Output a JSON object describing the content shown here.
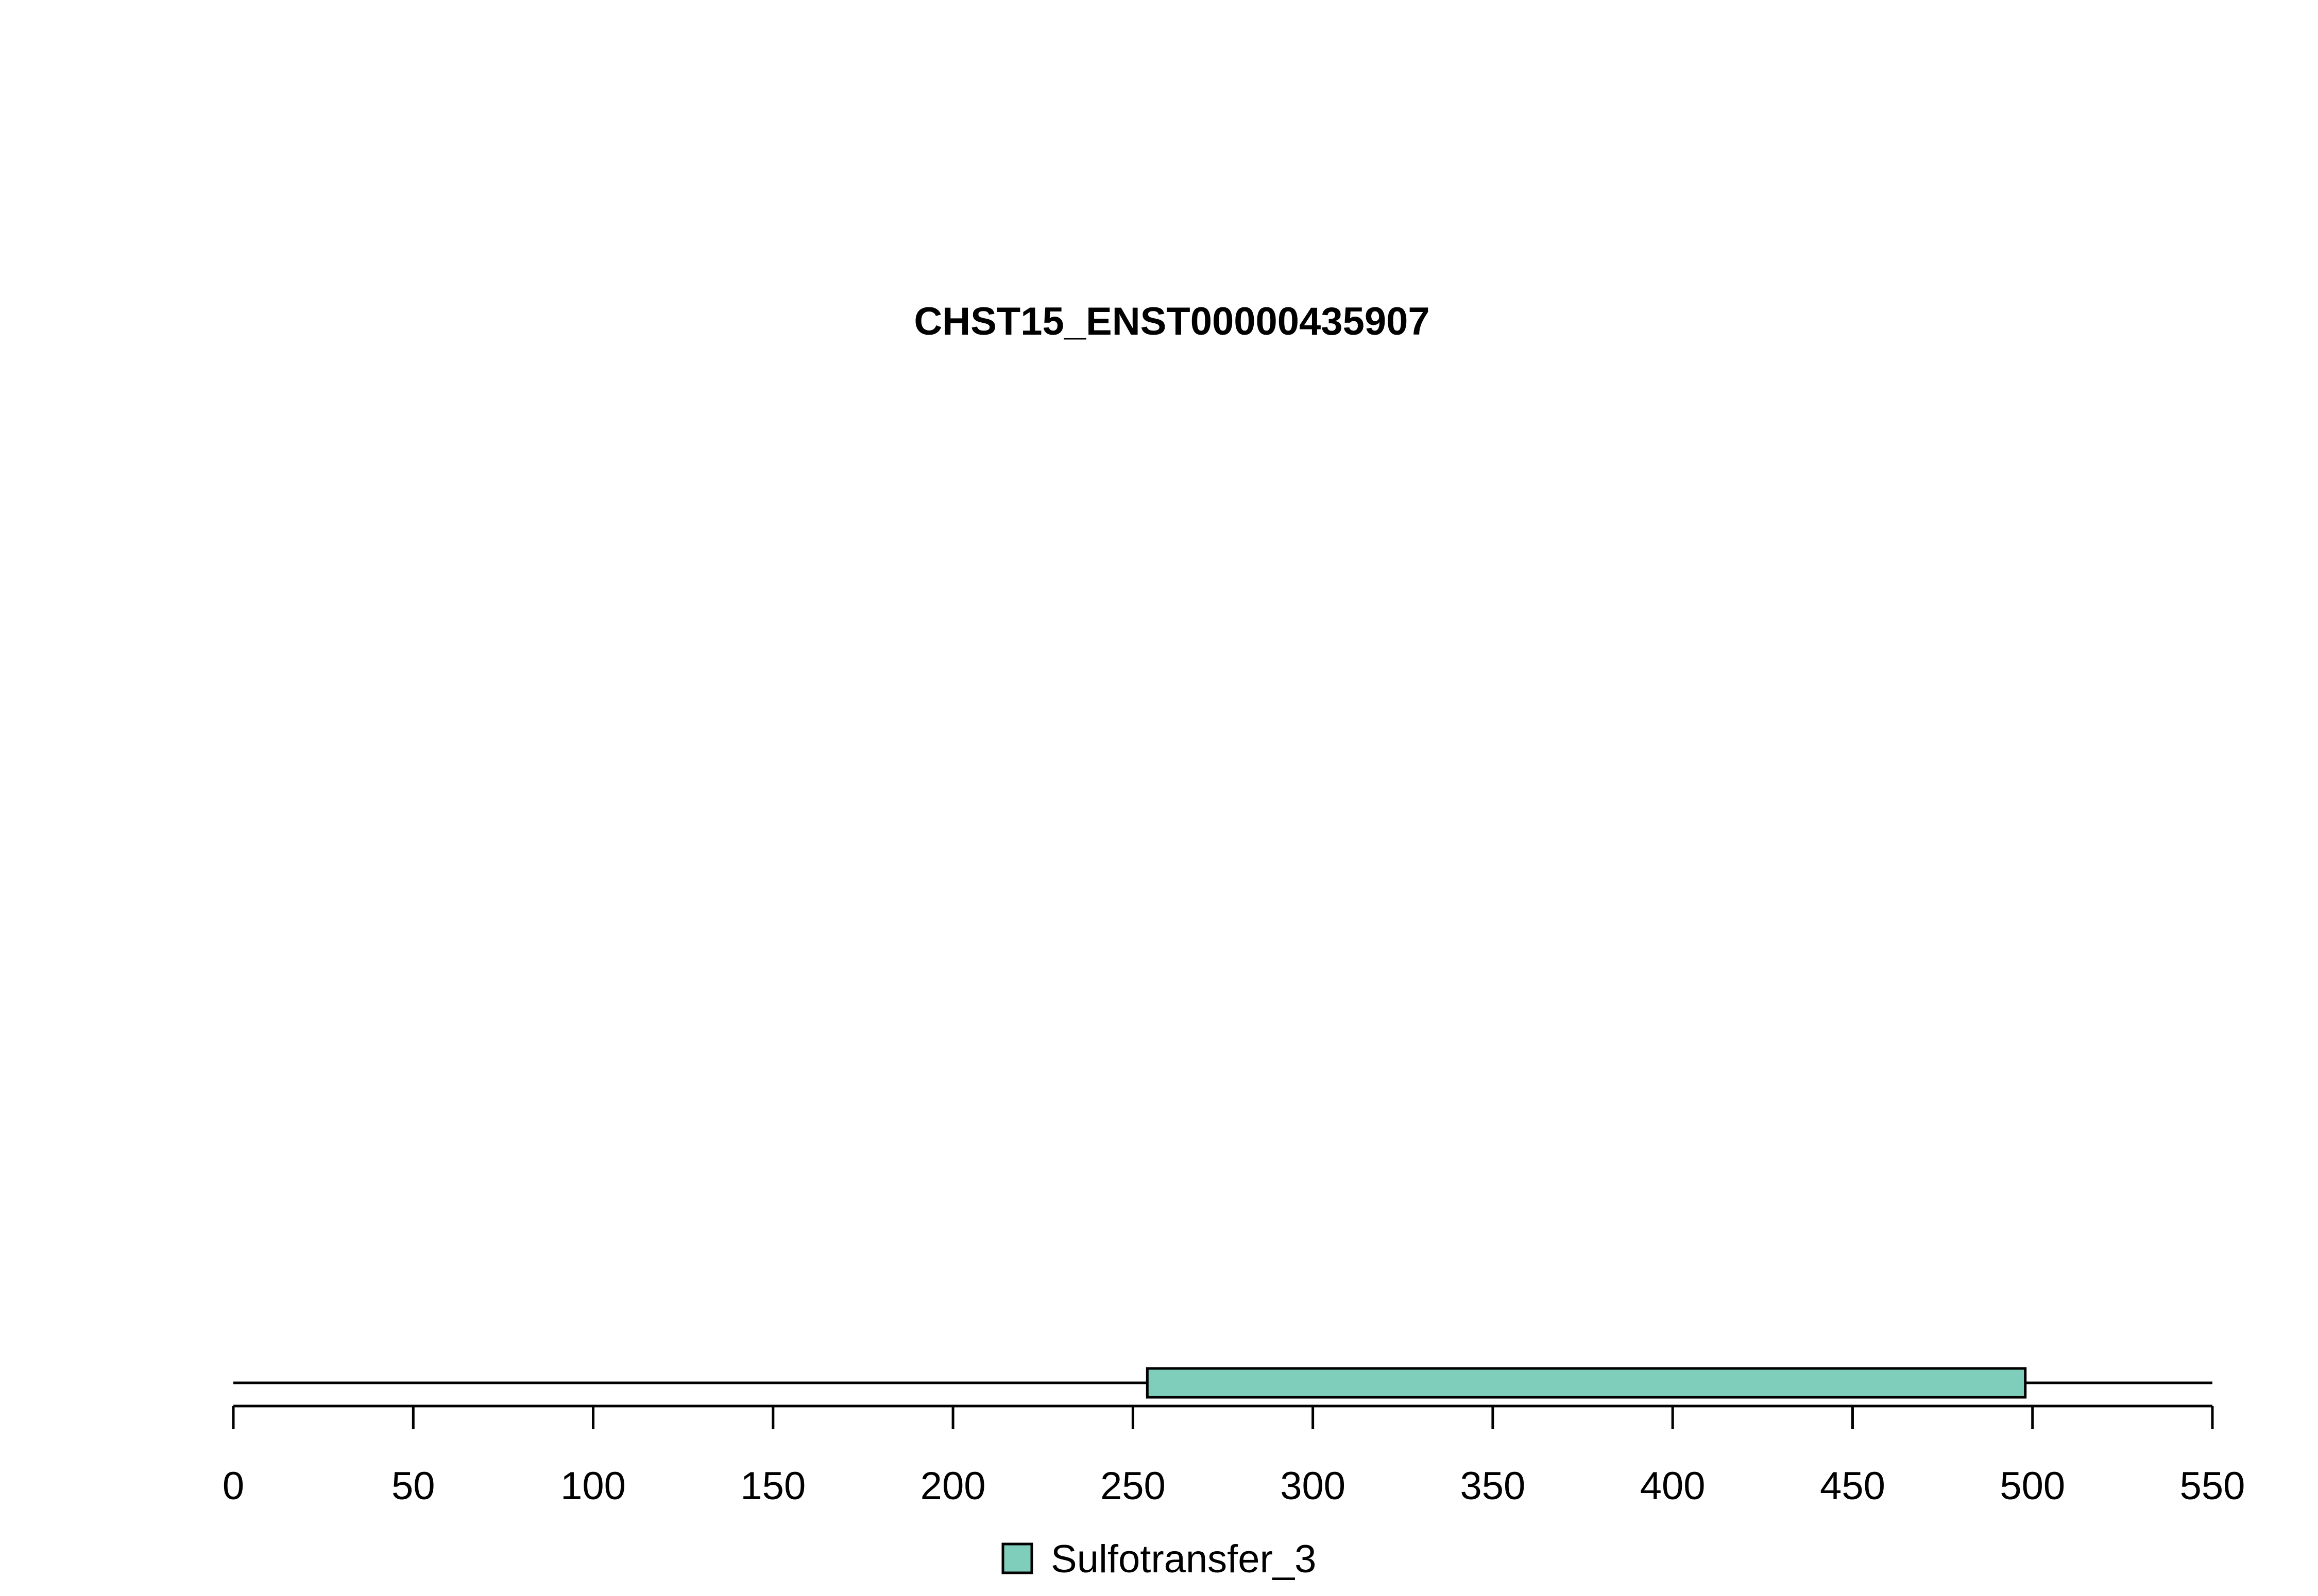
{
  "chart_data": {
    "type": "bar",
    "title": "CHST15_ENST00000435907",
    "xlabel": "",
    "ylabel": "",
    "protein_length": 550,
    "xlim": [
      0,
      550
    ],
    "x_ticks": [
      0,
      50,
      100,
      150,
      200,
      250,
      300,
      350,
      400,
      450,
      500,
      550
    ],
    "x_tick_labels": [
      "0",
      "50",
      "100",
      "150",
      "200",
      "250",
      "300",
      "350",
      "400",
      "450",
      "500",
      "550"
    ],
    "domains": [
      {
        "name": "Sulfotransfer_3",
        "start": 254,
        "end": 498,
        "color": "#7FCDBB"
      }
    ],
    "legend": [
      {
        "label": "Sulfotransfer_3",
        "color": "#7FCDBB"
      }
    ],
    "legend_position": "bottom-center",
    "grid": false
  }
}
